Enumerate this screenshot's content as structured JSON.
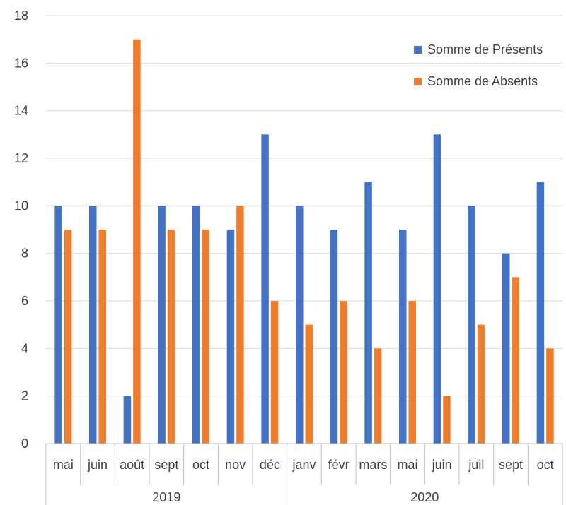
{
  "chart_data": {
    "type": "bar",
    "title": "",
    "xlabel": "",
    "ylabel": "",
    "ylim": [
      0,
      18
    ],
    "yticks": [
      0,
      2,
      4,
      6,
      8,
      10,
      12,
      14,
      16,
      18
    ],
    "grid": true,
    "legend_position": "top-right",
    "groups": [
      {
        "label": "2019",
        "categories": [
          "mai",
          "juin",
          "août",
          "sept",
          "oct",
          "nov",
          "déc"
        ]
      },
      {
        "label": "2020",
        "categories": [
          "janv",
          "févr",
          "mars",
          "mai",
          "juin",
          "juil",
          "sept",
          "oct"
        ]
      }
    ],
    "categories": [
      "mai",
      "juin",
      "août",
      "sept",
      "oct",
      "nov",
      "déc",
      "janv",
      "févr",
      "mars",
      "mai",
      "juin",
      "juil",
      "sept",
      "oct"
    ],
    "series": [
      {
        "name": "Somme de Présents",
        "color": "#4472C4",
        "values": [
          10,
          10,
          2,
          10,
          10,
          9,
          13,
          10,
          9,
          11,
          9,
          13,
          10,
          8,
          11
        ]
      },
      {
        "name": "Somme de Absents",
        "color": "#ED7D31",
        "values": [
          9,
          9,
          17,
          9,
          9,
          10,
          6,
          5,
          6,
          4,
          6,
          2,
          5,
          7,
          4
        ]
      }
    ]
  }
}
